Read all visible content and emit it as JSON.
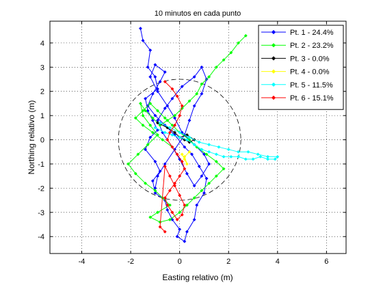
{
  "chart_data": {
    "type": "line",
    "title": "10 minutos en cada punto",
    "xlabel": "Easting relativo (m)",
    "ylabel": "Northing relativo (m)",
    "xlim": [
      -5.3,
      6.8
    ],
    "ylim": [
      -4.7,
      4.9
    ],
    "xticks": [
      -4,
      -2,
      0,
      2,
      4,
      6
    ],
    "yticks": [
      -4,
      -3,
      -2,
      -1,
      0,
      1,
      2,
      3,
      4
    ],
    "grid": true,
    "legend_position": "top-right",
    "circle": {
      "center_x": 0,
      "center_y": 0,
      "radius": 2.5,
      "style": "dashed",
      "color": "#000000"
    },
    "series": [
      {
        "name": "Pt. 1 - 24.4%",
        "color": "#0000ff",
        "x": [
          -1.6,
          -1.5,
          -1.2,
          -1.3,
          -1.0,
          -0.9,
          -1.4,
          -1.3,
          -1.1,
          -0.9,
          -1.2,
          -1.4,
          -1.0,
          -0.8,
          -1.1,
          -1.0,
          -0.6,
          -0.5,
          -0.3,
          0.0,
          -0.1,
          0.2,
          0.3,
          0.6,
          0.7,
          1.0,
          1.1,
          0.8,
          0.5,
          0.2,
          -0.2,
          -0.6,
          -1.0,
          -1.3,
          -1.1,
          -0.8,
          -0.6,
          -1.0,
          -1.2,
          -0.9,
          -0.5,
          -0.2,
          0.1,
          0.6,
          1.0,
          1.2,
          0.9,
          0.6,
          0.3,
          0.0,
          -0.3,
          -0.7,
          -0.9,
          -0.6,
          -0.3,
          0.1,
          0.6,
          0.9,
          1.1,
          0.9,
          0.6,
          0.4,
          0.2,
          -0.2,
          -0.6,
          -0.9,
          -1.0
        ],
        "y": [
          4.6,
          4.1,
          3.7,
          3.0,
          2.6,
          2.1,
          1.7,
          1.2,
          0.8,
          0.4,
          0.1,
          -0.4,
          -0.9,
          -1.3,
          -1.7,
          -2.2,
          -2.5,
          -2.9,
          -3.3,
          -3.7,
          -4.0,
          -4.2,
          -3.8,
          -3.3,
          -2.7,
          -2.2,
          -1.6,
          -1.1,
          -0.6,
          -0.3,
          0.2,
          0.6,
          1.0,
          1.4,
          1.9,
          2.4,
          2.8,
          3.1,
          2.6,
          2.0,
          1.4,
          0.9,
          0.3,
          -0.2,
          -0.6,
          -1.0,
          -1.5,
          -1.9,
          -1.4,
          -0.8,
          -0.3,
          0.3,
          0.8,
          1.3,
          1.7,
          2.2,
          2.6,
          3.0,
          2.5,
          1.9,
          1.4,
          0.8,
          0.2,
          -0.4,
          -1.0,
          -1.5,
          -2.0
        ]
      },
      {
        "name": "Pt. 2 - 23.2%",
        "color": "#00ff00",
        "x": [
          2.7,
          2.4,
          2.1,
          1.8,
          1.5,
          1.2,
          0.9,
          0.7,
          0.4,
          0.1,
          -0.2,
          -0.5,
          -0.8,
          -1.1,
          -1.4,
          -1.6,
          -1.5,
          -1.2,
          -0.9,
          -1.3,
          -1.7,
          -2.1,
          -1.8,
          -1.4,
          -1.0,
          -0.7,
          -0.4,
          -0.9,
          -1.2,
          -0.8,
          -0.4,
          0.0,
          0.3,
          0.6,
          0.9,
          1.2,
          1.5,
          1.8,
          1.5,
          1.1,
          0.7,
          0.4,
          0.0,
          -0.3,
          -0.6,
          -0.9,
          -1.2,
          -1.5,
          -1.8,
          -1.5,
          -1.1,
          -0.7,
          -0.3
        ],
        "y": [
          4.3,
          4.0,
          3.6,
          3.3,
          3.0,
          2.6,
          2.3,
          1.9,
          1.6,
          1.3,
          1.0,
          0.8,
          0.6,
          0.9,
          1.2,
          1.5,
          1.0,
          0.6,
          0.2,
          -0.2,
          -0.6,
          -1.0,
          -1.4,
          -1.8,
          -2.1,
          -2.4,
          -2.7,
          -3.0,
          -3.2,
          -3.4,
          -3.3,
          -3.0,
          -2.7,
          -2.4,
          -2.1,
          -1.8,
          -1.5,
          -1.2,
          -0.9,
          -0.6,
          -0.3,
          0.0,
          0.3,
          0.6,
          0.9,
          1.2,
          1.5,
          1.2,
          0.9,
          0.6,
          0.3,
          0.0,
          -0.3
        ]
      },
      {
        "name": "Pt. 3 - 0.0%",
        "color": "#000000",
        "x": [
          -0.9,
          -0.5,
          -0.2,
          0.0,
          0.2,
          0.4,
          0.6,
          0.3,
          0.0
        ],
        "y": [
          0.7,
          0.5,
          0.3,
          0.1,
          0.0,
          -0.1,
          0.0,
          0.2,
          0.1
        ]
      },
      {
        "name": "Pt. 4 - 0.0%",
        "color": "#ffff00",
        "x": [
          0.1,
          0.2,
          0.3,
          0.2,
          0.4
        ],
        "y": [
          -0.6,
          -0.8,
          -1.0,
          -0.7,
          -0.5
        ]
      },
      {
        "name": "Pt. 5 - 11.5%",
        "color": "#00ffff",
        "x": [
          -1.0,
          -0.6,
          -0.3,
          0.0,
          0.3,
          0.6,
          0.9,
          1.2,
          1.5,
          1.8,
          2.1,
          2.4,
          2.7,
          3.0,
          3.3,
          3.6,
          3.9,
          4.0,
          3.6,
          3.2,
          2.8,
          2.4,
          2.0,
          1.6,
          1.2,
          0.8,
          0.4,
          0.0,
          -0.4,
          -0.8
        ],
        "y": [
          0.5,
          0.3,
          0.2,
          0.1,
          0.0,
          -0.2,
          -0.4,
          -0.5,
          -0.6,
          -0.7,
          -0.7,
          -0.7,
          -0.8,
          -0.8,
          -0.7,
          -0.8,
          -0.8,
          -0.7,
          -0.7,
          -0.6,
          -0.5,
          -0.5,
          -0.4,
          -0.3,
          -0.2,
          -0.1,
          0.1,
          0.3,
          0.5,
          0.7
        ]
      },
      {
        "name": "Pt. 6 - 15.1%",
        "color": "#ff0000",
        "x": [
          -0.6,
          -0.3,
          -0.1,
          0.1,
          0.0,
          -0.2,
          -0.4,
          -0.5,
          -0.3,
          -0.1,
          0.1,
          0.2,
          0.0,
          -0.2,
          -0.4,
          -0.6,
          -0.5,
          -0.3,
          -0.1,
          0.1,
          0.2,
          0.0,
          -0.2,
          -0.4,
          -0.6,
          -0.8,
          -0.6
        ],
        "y": [
          2.4,
          2.1,
          1.8,
          1.4,
          1.0,
          0.6,
          0.3,
          0.0,
          -0.3,
          -0.6,
          -0.9,
          -1.2,
          -1.5,
          -1.8,
          -2.1,
          -2.4,
          -2.7,
          -3.0,
          -3.3,
          -3.1,
          -2.7,
          -2.3,
          -1.9,
          -1.5,
          -1.1,
          -3.6,
          -3.8
        ]
      }
    ]
  }
}
